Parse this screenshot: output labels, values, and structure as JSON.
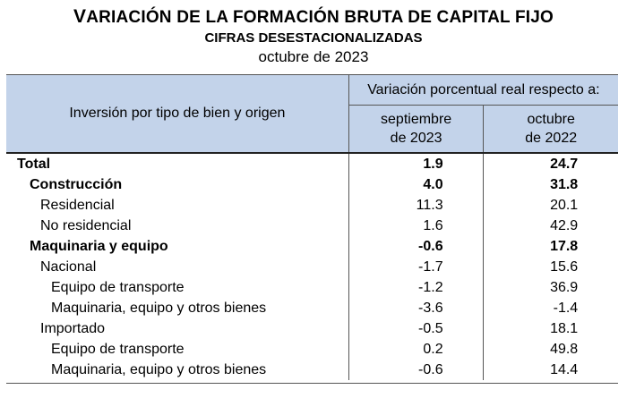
{
  "header": {
    "title_first": "V",
    "title_rest": "ARIACIÓN DE LA FORMACIÓN BRUTA DE CAPITAL FIJO",
    "subtitle": "CIFRAS DESESTACIONALIZADAS",
    "period": "octubre de 2023"
  },
  "table": {
    "row_header": "Inversión por tipo de bien y origen",
    "span_header": "Variación porcentual real respecto a:",
    "col1": "septiembre\nde 2023",
    "col1_a": "septiembre",
    "col1_b": "de 2023",
    "col2_a": "octubre",
    "col2_b": "de 2022",
    "rows": [
      {
        "label": "Total",
        "v1": "1.9",
        "v2": "24.7",
        "level": 0,
        "bold": true
      },
      {
        "label": "Construcción",
        "v1": "4.0",
        "v2": "31.8",
        "level": 1,
        "bold": true
      },
      {
        "label": "Residencial",
        "v1": "11.3",
        "v2": "20.1",
        "level": 2,
        "bold": false
      },
      {
        "label": "No residencial",
        "v1": "1.6",
        "v2": "42.9",
        "level": 2,
        "bold": false
      },
      {
        "label": "Maquinaria y equipo",
        "v1": "-0.6",
        "v2": "17.8",
        "level": 1,
        "bold": true
      },
      {
        "label": "Nacional",
        "v1": "-1.7",
        "v2": "15.6",
        "level": 2,
        "bold": false
      },
      {
        "label": "Equipo de transporte",
        "v1": "-1.2",
        "v2": "36.9",
        "level": 3,
        "bold": false
      },
      {
        "label": "Maquinaria, equipo y otros bienes",
        "v1": "-3.6",
        "v2": "-1.4",
        "level": 3,
        "bold": false
      },
      {
        "label": "Importado",
        "v1": "-0.5",
        "v2": "18.1",
        "level": 2,
        "bold": false
      },
      {
        "label": "Equipo de transporte",
        "v1": "0.2",
        "v2": "49.8",
        "level": 3,
        "bold": false
      },
      {
        "label": "Maquinaria, equipo y otros bienes",
        "v1": "-0.6",
        "v2": "14.4",
        "level": 3,
        "bold": false
      }
    ]
  }
}
